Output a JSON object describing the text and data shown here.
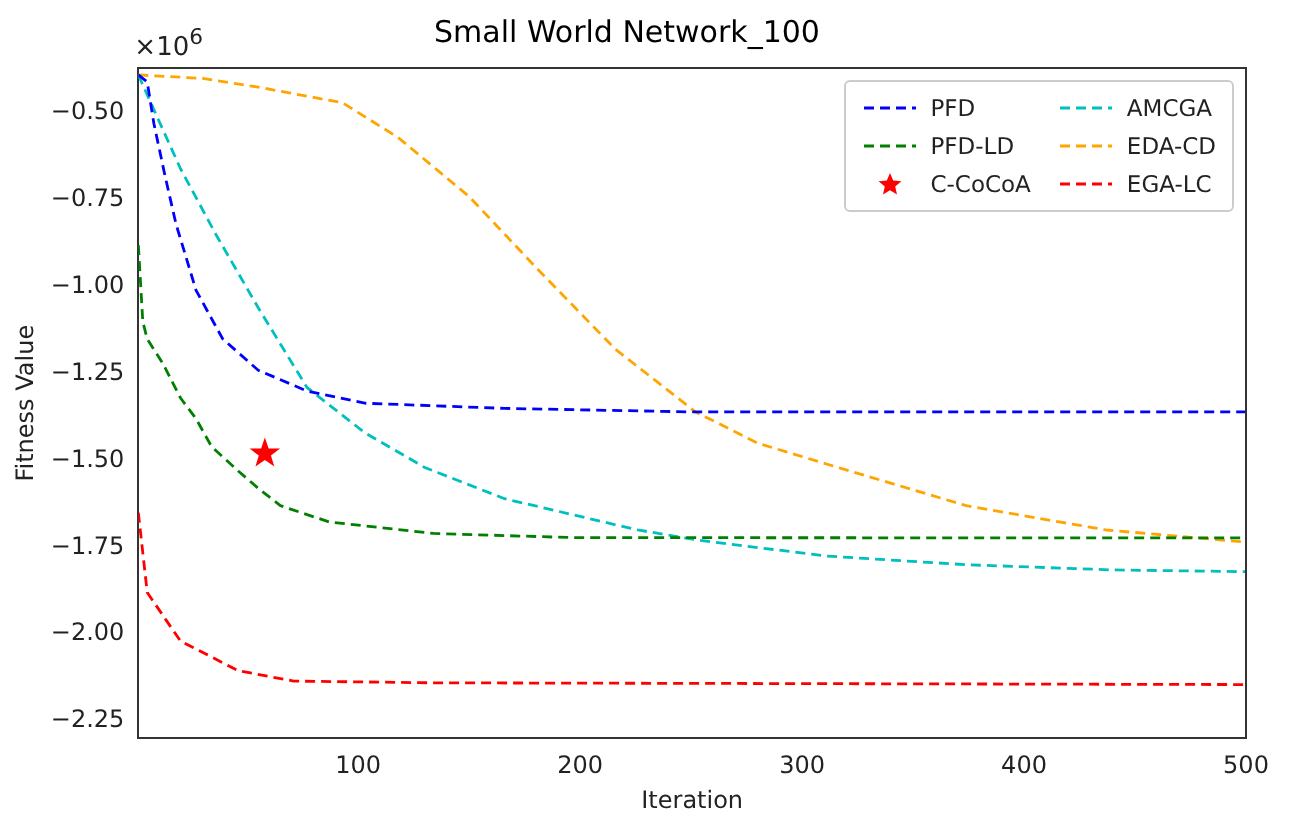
{
  "chart_data": {
    "type": "line",
    "title": "Small World Network_100",
    "xlabel": "Iteration",
    "ylabel": "Fitness Value",
    "annotations": [
      "×10$^{6}$"
    ],
    "xlim": [
      1,
      500
    ],
    "xticks": [
      100,
      200,
      300,
      400,
      500
    ],
    "ylim": [
      -2.3,
      -0.37
    ],
    "yticks": [
      {
        "value": -2.25,
        "label": "−2.25"
      },
      {
        "value": -2.0,
        "label": "−2.00"
      },
      {
        "value": -1.75,
        "label": "−1.75"
      },
      {
        "value": -1.5,
        "label": "−1.50"
      },
      {
        "value": -1.25,
        "label": "−1.25"
      },
      {
        "value": -1.0,
        "label": "−1.00"
      },
      {
        "value": -0.75,
        "label": "−0.75"
      },
      {
        "value": -0.5,
        "label": "−0.50"
      }
    ],
    "grid": false,
    "legend": "top right",
    "line_style": "dashed",
    "series": [
      {
        "name": "PFD",
        "color": "#0000ff",
        "x": [
          1,
          5,
          8,
          13,
          18,
          27,
          39,
          55,
          77,
          103,
          166,
          250,
          500
        ],
        "values": [
          -0.39,
          -0.41,
          -0.53,
          -0.68,
          -0.82,
          -1.01,
          -1.15,
          -1.24,
          -1.3,
          -1.335,
          -1.35,
          -1.36,
          -1.36
        ]
      },
      {
        "name": "PFD-LD",
        "color": "#008000",
        "x": [
          1,
          3,
          5,
          12,
          20,
          27,
          34,
          46,
          55,
          65,
          87,
          134,
          197,
          500
        ],
        "values": [
          -0.88,
          -1.1,
          -1.15,
          -1.22,
          -1.32,
          -1.38,
          -1.46,
          -1.53,
          -1.58,
          -1.63,
          -1.677,
          -1.71,
          -1.722,
          -1.723
        ]
      },
      {
        "name": "C-CoCoA",
        "type": "scatter",
        "marker": "star",
        "color": "#ff0000",
        "x": [
          58
        ],
        "values": [
          -1.48
        ]
      },
      {
        "name": "AMCGA",
        "color": "#00bfbf",
        "x": [
          1,
          8,
          20,
          36,
          55,
          77,
          103,
          130,
          166,
          226,
          254,
          311,
          374,
          440,
          500
        ],
        "values": [
          -0.39,
          -0.49,
          -0.66,
          -0.85,
          -1.06,
          -1.29,
          -1.42,
          -1.52,
          -1.61,
          -1.7,
          -1.73,
          -1.775,
          -1.8,
          -1.815,
          -1.82
        ]
      },
      {
        "name": "EDA-CD",
        "color": "#ffa500",
        "x": [
          1,
          30,
          55,
          93,
          118,
          150,
          181,
          216,
          252,
          280,
          311,
          374,
          437,
          500
        ],
        "values": [
          -0.39,
          -0.4,
          -0.425,
          -0.47,
          -0.57,
          -0.74,
          -0.95,
          -1.18,
          -1.36,
          -1.45,
          -1.51,
          -1.63,
          -1.7,
          -1.735
        ]
      },
      {
        "name": "EGA-LC",
        "color": "#ff0000",
        "x": [
          1,
          5,
          20,
          46,
          71,
          134,
          500
        ],
        "values": [
          -1.65,
          -1.88,
          -2.02,
          -2.105,
          -2.135,
          -2.14,
          -2.145
        ]
      }
    ]
  }
}
